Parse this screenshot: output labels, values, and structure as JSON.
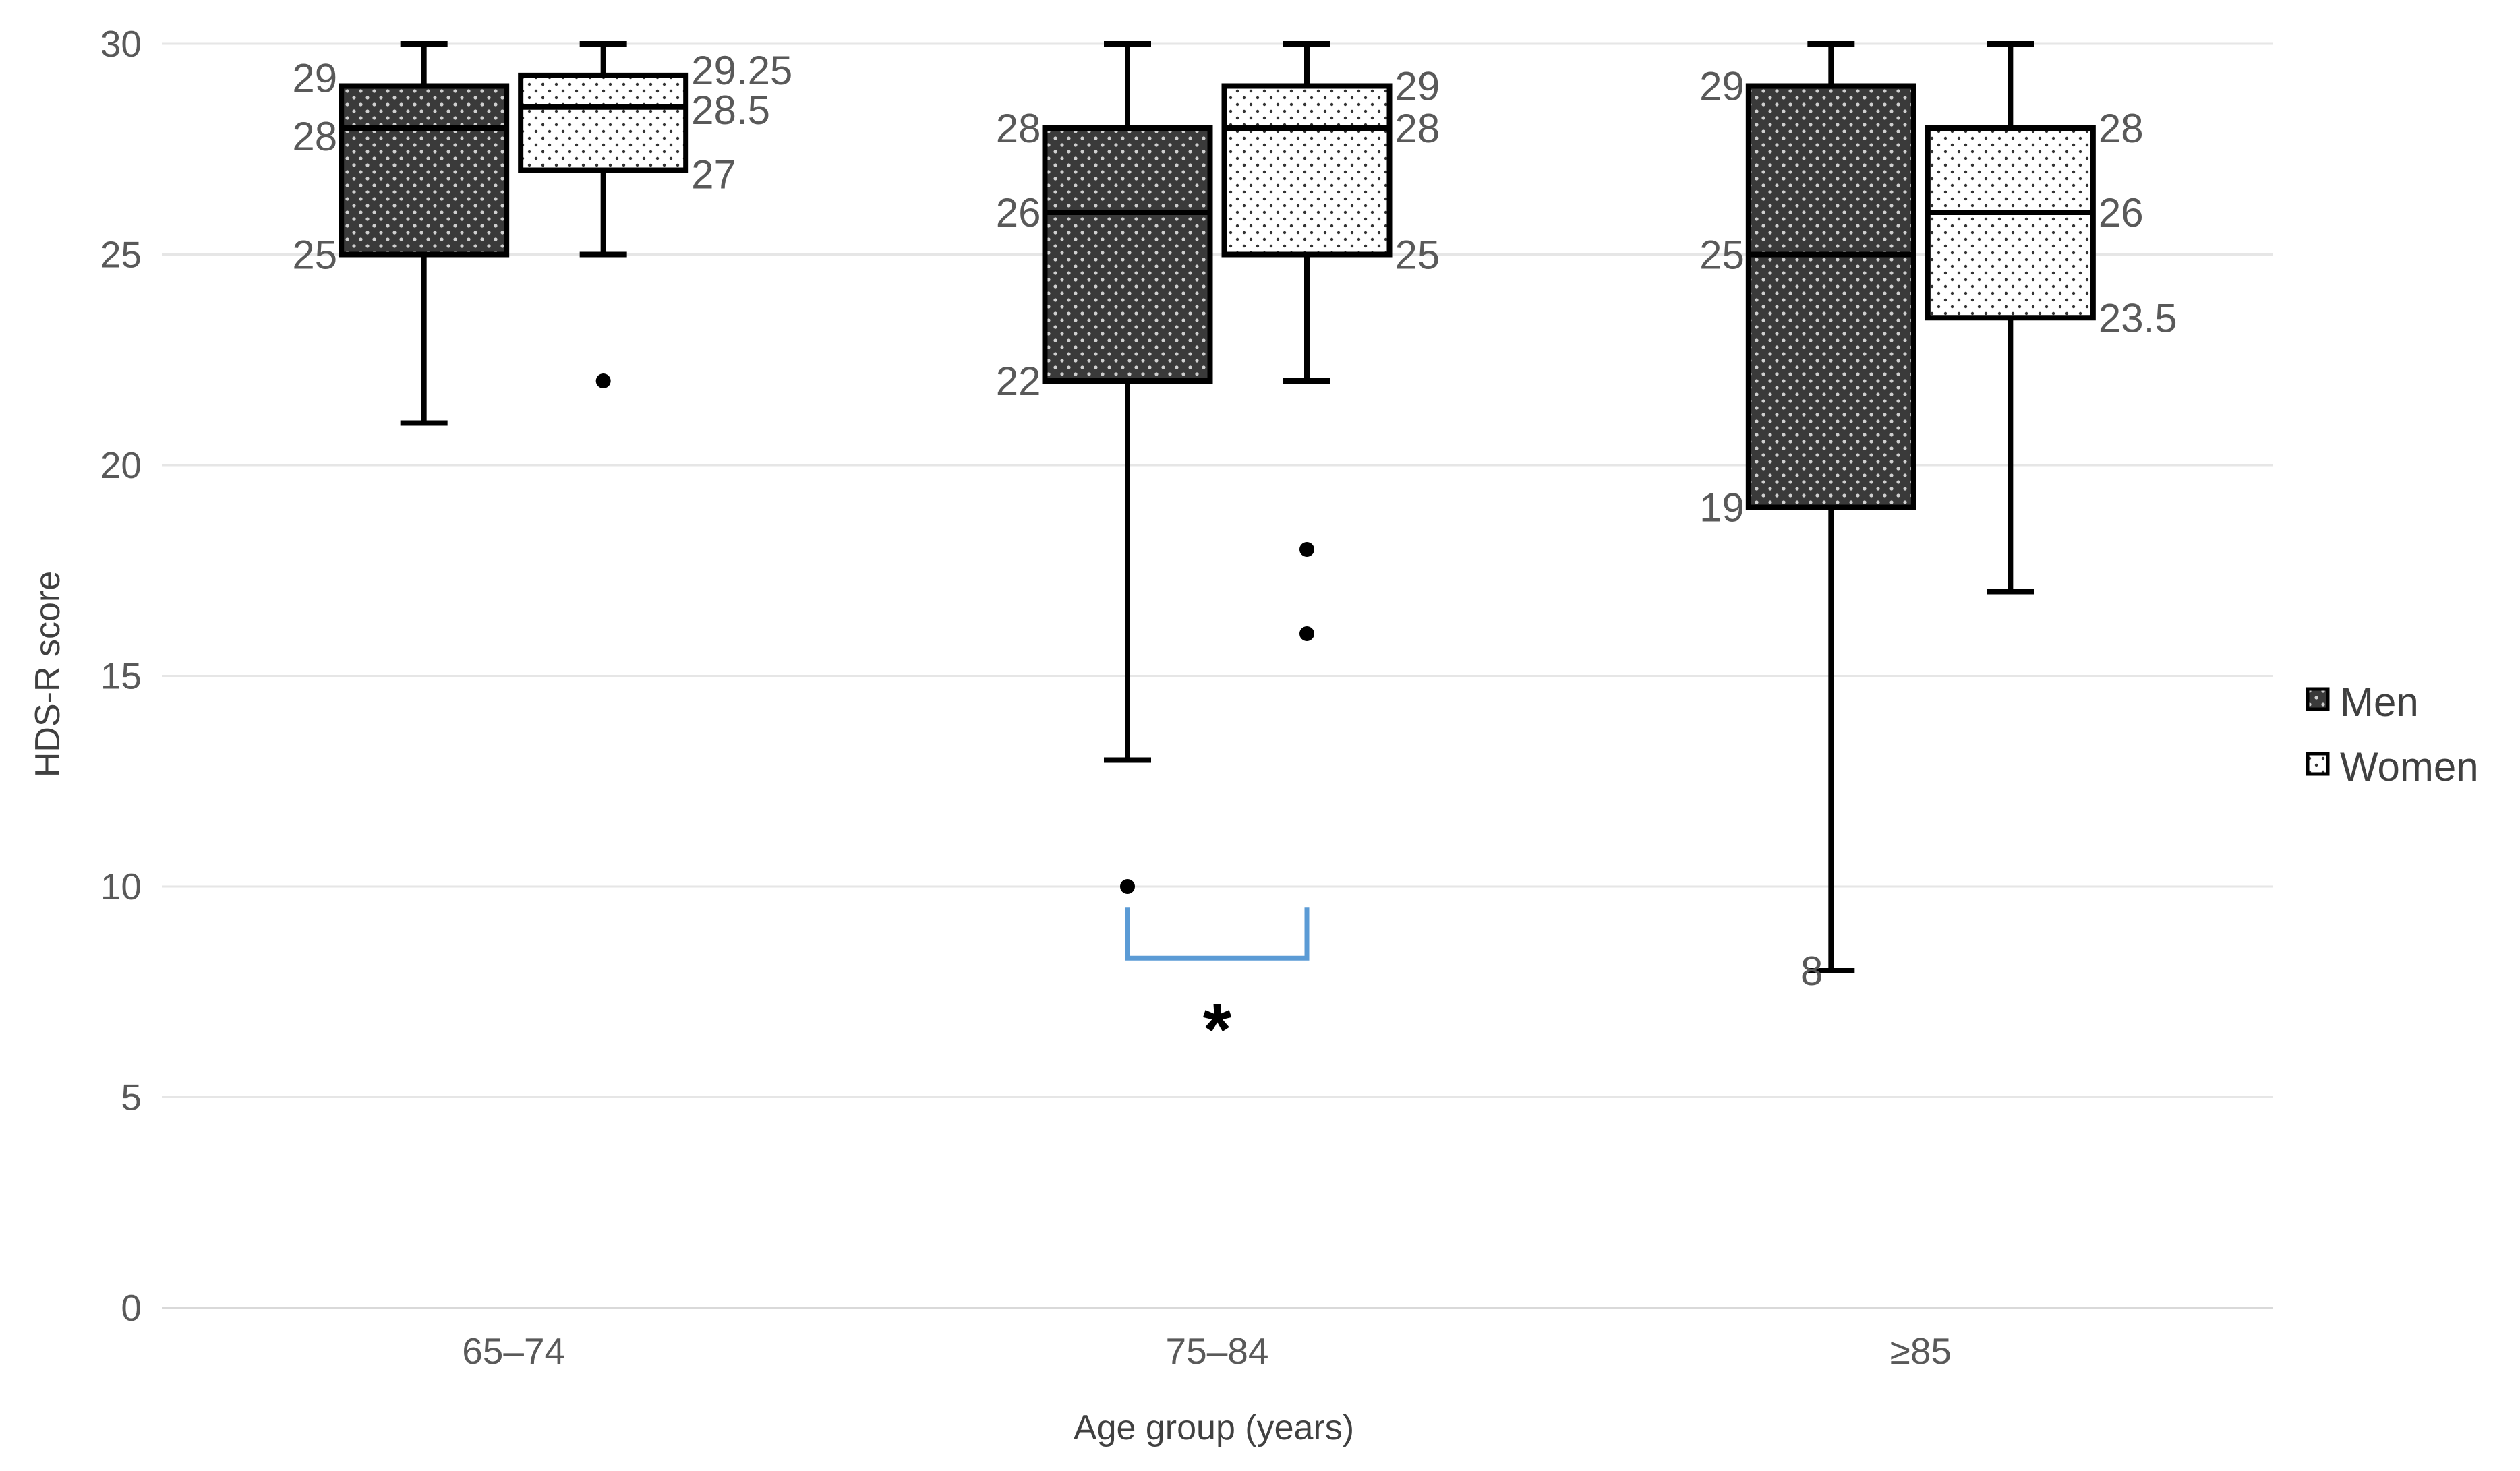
{
  "chart_data": {
    "type": "boxplot",
    "title": "",
    "xlabel": "Age group (years)",
    "ylabel": "HDS-R score",
    "ylim": [
      0,
      30
    ],
    "yticks": [
      0,
      5,
      10,
      15,
      20,
      25,
      30
    ],
    "grid": true,
    "legend_position": "right",
    "categories": [
      "65–74",
      "75–84",
      "≥85"
    ],
    "series": [
      {
        "name": "Men",
        "pattern": "dark-dotted",
        "color": "#3a3a3a",
        "boxes": [
          {
            "category": "65–74",
            "whisker_low": 21,
            "q1": 25,
            "median": 28,
            "q3": 29,
            "whisker_high": 30,
            "outliers": [],
            "labels": {
              "q3": "29",
              "median": "28",
              "q1": "25"
            }
          },
          {
            "category": "75–84",
            "whisker_low": 13,
            "q1": 22,
            "median": 26,
            "q3": 28,
            "whisker_high": 30,
            "outliers": [
              10
            ],
            "labels": {
              "q3": "28",
              "median": "26",
              "q1": "22"
            }
          },
          {
            "category": "≥85",
            "whisker_low": 8,
            "q1": 19,
            "median": 25,
            "q3": 29,
            "whisker_high": 30,
            "outliers": [],
            "labels": {
              "q3": "29",
              "median": "25",
              "q1": "19",
              "whisker_low": "8"
            }
          }
        ]
      },
      {
        "name": "Women",
        "pattern": "light-dotted",
        "color": "#ffffff",
        "boxes": [
          {
            "category": "65–74",
            "whisker_low": 25,
            "q1": 27,
            "median": 28.5,
            "q3": 29.25,
            "whisker_high": 30,
            "outliers": [
              22
            ],
            "labels": {
              "q3": "29.25",
              "median": "28.5",
              "q1": "27"
            }
          },
          {
            "category": "75–84",
            "whisker_low": 22,
            "q1": 25,
            "median": 28,
            "q3": 29,
            "whisker_high": 30,
            "outliers": [
              18,
              16
            ],
            "labels": {
              "q3": "29",
              "median": "28",
              "q1": "25"
            }
          },
          {
            "category": "≥85",
            "whisker_low": 17,
            "q1": 23.5,
            "median": 26,
            "q3": 28,
            "whisker_high": 30,
            "outliers": [],
            "labels": {
              "q3": "28",
              "median": "26",
              "q1": "23.5"
            }
          }
        ]
      }
    ],
    "annotations": [
      {
        "type": "significance-bracket",
        "category": "75–84",
        "text": "*",
        "bracket_color": "#5b9bd5"
      }
    ]
  }
}
